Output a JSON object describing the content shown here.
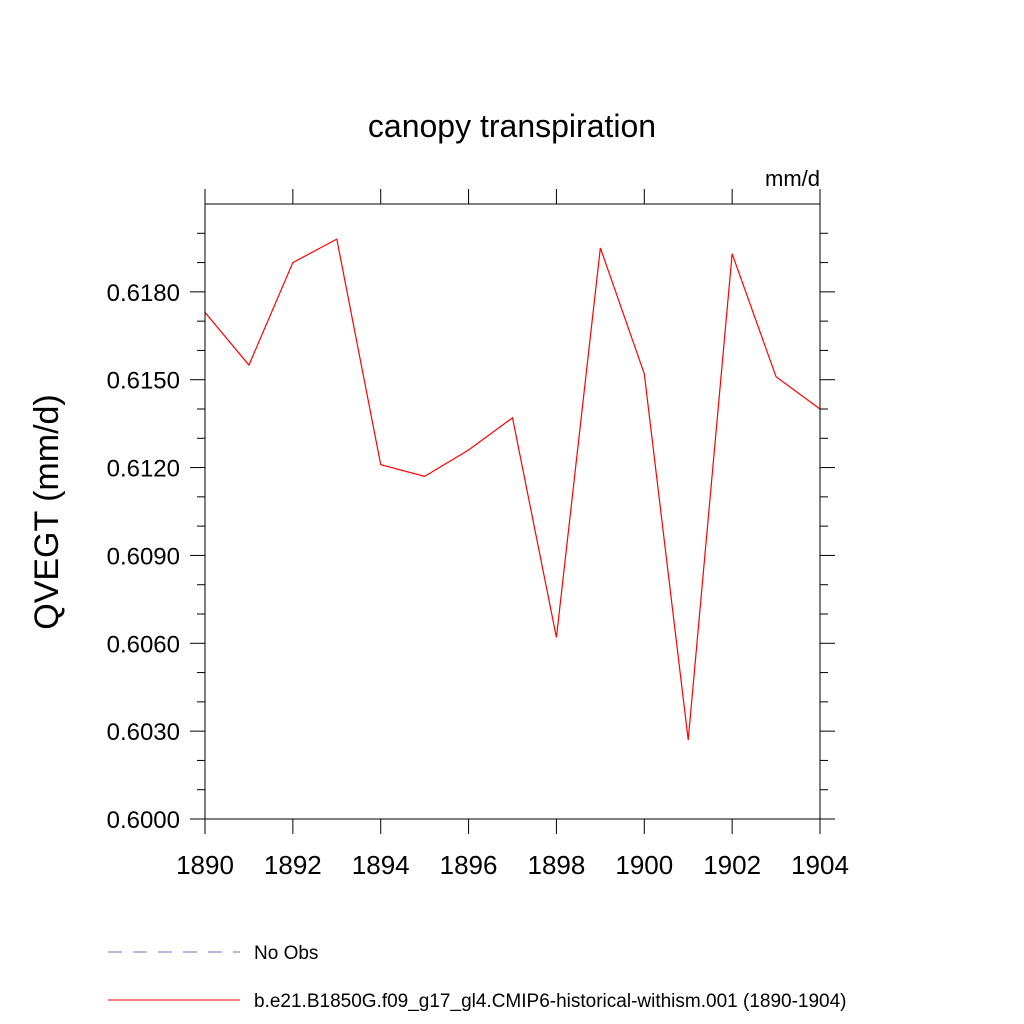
{
  "chart_data": {
    "type": "line",
    "title": "canopy transpiration",
    "units": "mm/d",
    "xlabel": "",
    "ylabel": "QVEGT  (mm/d)",
    "x": [
      1890,
      1891,
      1892,
      1893,
      1894,
      1895,
      1896,
      1897,
      1898,
      1899,
      1900,
      1901,
      1902,
      1903,
      1904
    ],
    "xlim": [
      1890,
      1904
    ],
    "ylim": [
      0.6,
      0.621
    ],
    "xticks": [
      1890,
      1892,
      1894,
      1896,
      1898,
      1900,
      1902,
      1904
    ],
    "xtick_labels": [
      "1890",
      "1892",
      "1894",
      "1896",
      "1898",
      "1900",
      "1902",
      "1904"
    ],
    "yticks": [
      0.6,
      0.603,
      0.606,
      0.609,
      0.612,
      0.615,
      0.618
    ],
    "ytick_labels": [
      "0.6000",
      "0.6030",
      "0.6060",
      "0.6090",
      "0.6120",
      "0.6150",
      "0.6180"
    ],
    "grid": false,
    "legend_position": "bottom",
    "series": [
      {
        "name": "b.e21.B1850G.f09_g17_gl4.CMIP6-historical-withism.001 (1890-1904)",
        "color": "#ff0000",
        "dash": "solid",
        "values": [
          0.6173,
          0.6155,
          0.619,
          0.6198,
          0.6121,
          0.6117,
          0.6126,
          0.6137,
          0.6062,
          0.6195,
          0.6152,
          0.6027,
          0.6193,
          0.6151,
          0.614
        ]
      }
    ],
    "legend": [
      {
        "name": "No Obs",
        "color": "#7b68c8",
        "dash": "dashed"
      },
      {
        "name": "b.e21.B1850G.f09_g17_gl4.CMIP6-historical-withism.001 (1890-1904)",
        "color": "#ff0000",
        "dash": "solid"
      }
    ]
  }
}
